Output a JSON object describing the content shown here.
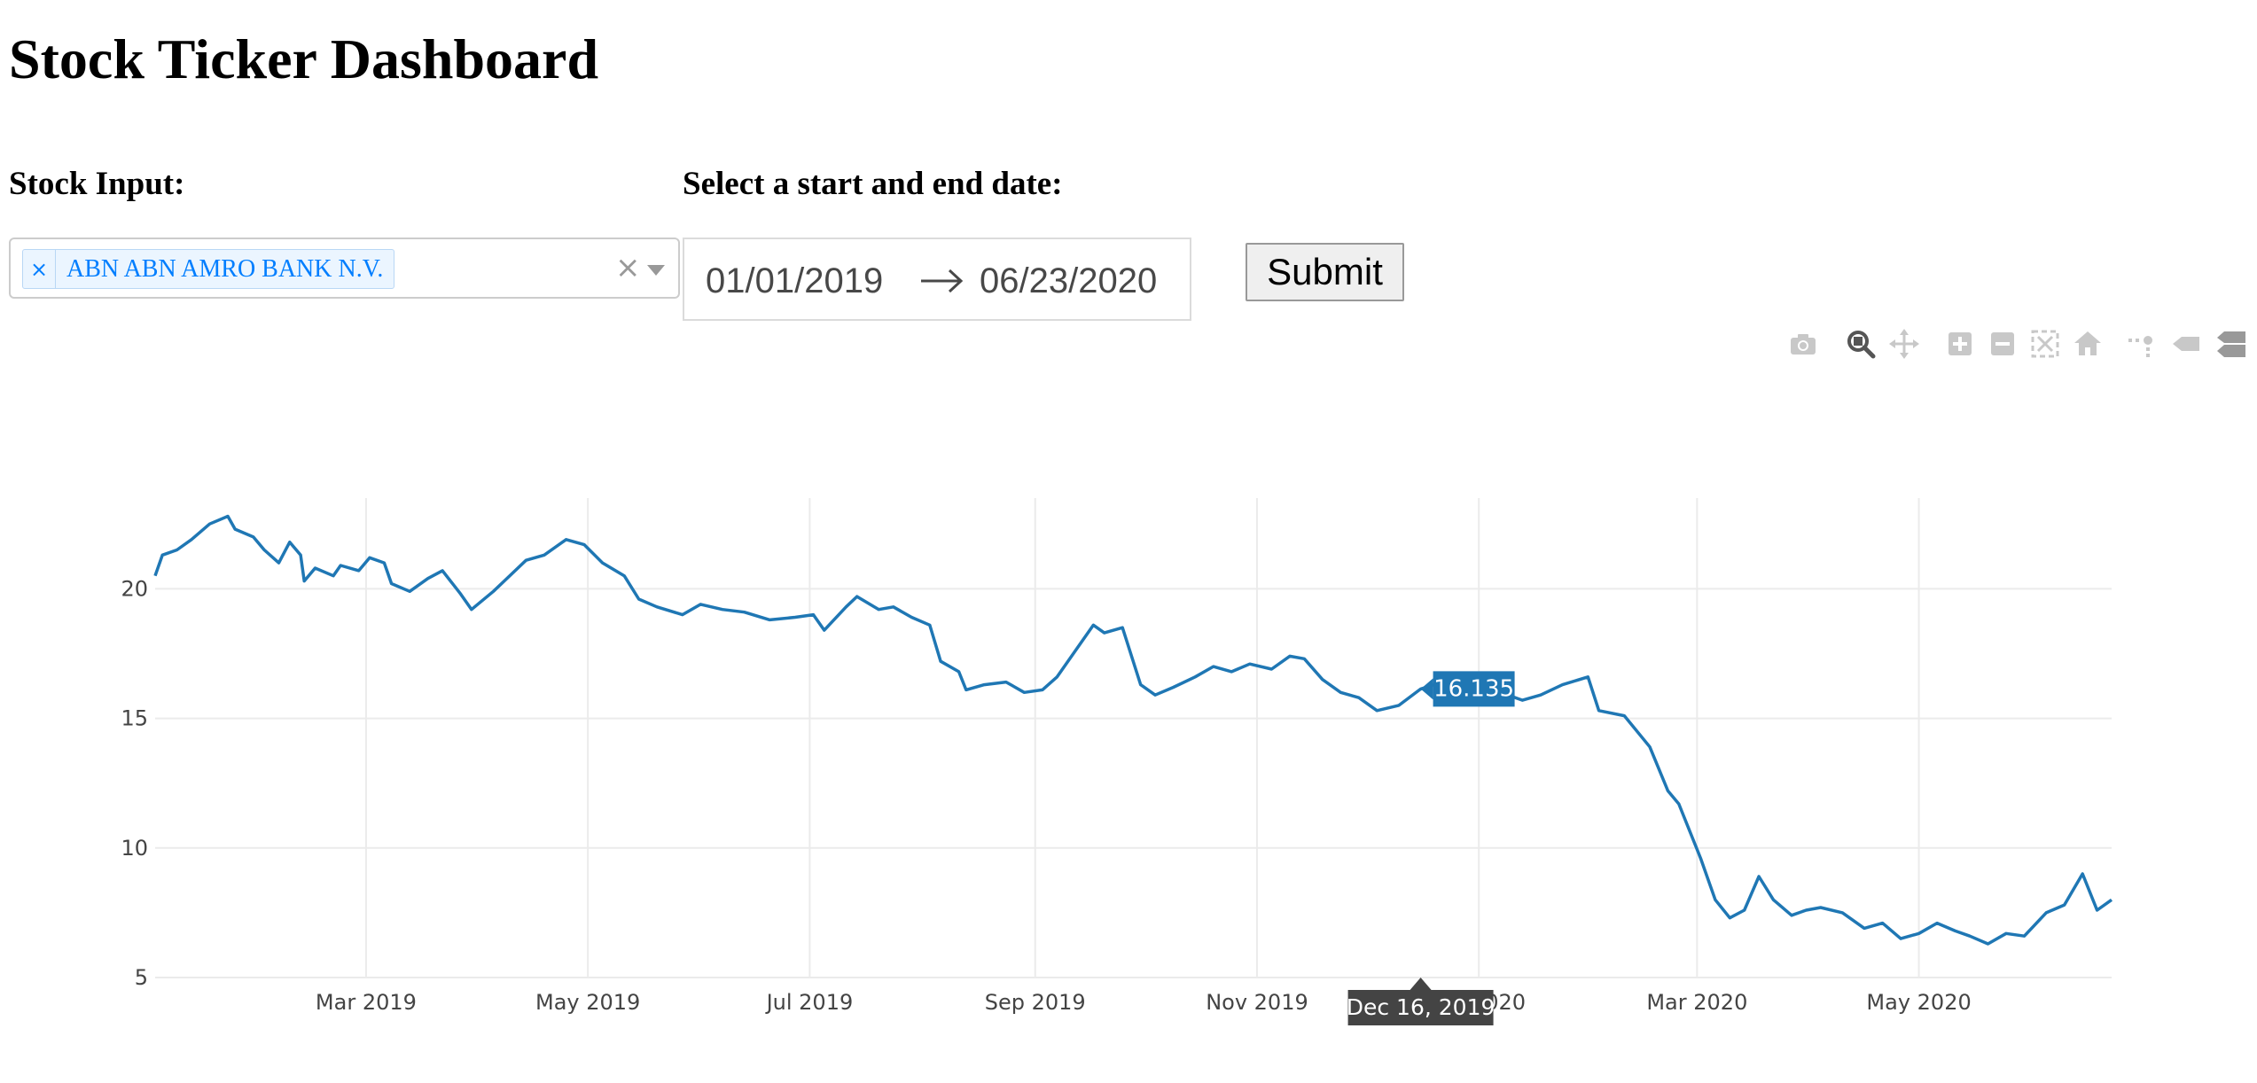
{
  "header": {
    "title": "Stock Ticker Dashboard"
  },
  "stock_input": {
    "label": "Stock Input:",
    "selected": [
      {
        "remove_glyph": "×",
        "label": "ABN ABN AMRO BANK N.V."
      }
    ],
    "clear_glyph": "×"
  },
  "date_range": {
    "label": "Select a start and end date:",
    "start": "01/01/2019",
    "end": "06/23/2020"
  },
  "submit": {
    "label": "Submit"
  },
  "modebar": {
    "icons": [
      "camera-icon",
      "zoom-icon",
      "pan-icon",
      "zoom-in-icon",
      "zoom-out-icon",
      "autoscale-icon",
      "reset-axes-icon",
      "spike-lines-icon",
      "hover-closest-icon",
      "hover-compare-icon"
    ],
    "active": "zoom-icon"
  },
  "chart_data": {
    "type": "line",
    "line_color": "#1f77b4",
    "grid": true,
    "xlim": [
      "2019-01-02",
      "2020-06-23"
    ],
    "ylim": [
      5,
      23.5
    ],
    "x_ticks": [
      {
        "date": "2019-03-01",
        "label": "Mar 2019"
      },
      {
        "date": "2019-05-01",
        "label": "May 2019"
      },
      {
        "date": "2019-07-01",
        "label": "Jul 2019"
      },
      {
        "date": "2019-09-01",
        "label": "Sep 2019"
      },
      {
        "date": "2019-11-01",
        "label": "Nov 2019"
      },
      {
        "date": "2020-01-01",
        "label": "Jan 2020"
      },
      {
        "date": "2020-03-01",
        "label": "Mar 2020"
      },
      {
        "date": "2020-05-01",
        "label": "May 2020"
      }
    ],
    "y_ticks": [
      5,
      10,
      15,
      20
    ],
    "hover": {
      "date": "2019-12-16",
      "label": "Dec 16, 2019",
      "value": "16.135"
    },
    "x": [
      "2019-01-02",
      "2019-01-04",
      "2019-01-08",
      "2019-01-12",
      "2019-01-17",
      "2019-01-22",
      "2019-01-24",
      "2019-01-29",
      "2019-02-01",
      "2019-02-05",
      "2019-02-08",
      "2019-02-11",
      "2019-02-12",
      "2019-02-15",
      "2019-02-20",
      "2019-02-22",
      "2019-02-27",
      "2019-03-02",
      "2019-03-06",
      "2019-03-08",
      "2019-03-13",
      "2019-03-18",
      "2019-03-22",
      "2019-03-27",
      "2019-03-30",
      "2019-04-05",
      "2019-04-08",
      "2019-04-14",
      "2019-04-19",
      "2019-04-25",
      "2019-04-30",
      "2019-05-05",
      "2019-05-11",
      "2019-05-15",
      "2019-05-20",
      "2019-05-27",
      "2019-06-01",
      "2019-06-07",
      "2019-06-13",
      "2019-06-20",
      "2019-06-27",
      "2019-07-02",
      "2019-07-05",
      "2019-07-11",
      "2019-07-14",
      "2019-07-20",
      "2019-07-24",
      "2019-07-29",
      "2019-08-03",
      "2019-08-06",
      "2019-08-11",
      "2019-08-13",
      "2019-08-18",
      "2019-08-24",
      "2019-08-29",
      "2019-09-03",
      "2019-09-07",
      "2019-09-12",
      "2019-09-17",
      "2019-09-20",
      "2019-09-25",
      "2019-09-30",
      "2019-10-04",
      "2019-10-09",
      "2019-10-15",
      "2019-10-20",
      "2019-10-25",
      "2019-10-30",
      "2019-11-05",
      "2019-11-10",
      "2019-11-14",
      "2019-11-19",
      "2019-11-24",
      "2019-11-29",
      "2019-12-04",
      "2019-12-10",
      "2019-12-16",
      "2019-12-22",
      "2019-12-27",
      "2020-01-02",
      "2020-01-07",
      "2020-01-13",
      "2020-01-18",
      "2020-01-24",
      "2020-01-31",
      "2020-02-03",
      "2020-02-10",
      "2020-02-17",
      "2020-02-22",
      "2020-02-25",
      "2020-03-02",
      "2020-03-06",
      "2020-03-10",
      "2020-03-14",
      "2020-03-18",
      "2020-03-22",
      "2020-03-27",
      "2020-03-31",
      "2020-04-04",
      "2020-04-10",
      "2020-04-16",
      "2020-04-21",
      "2020-04-26",
      "2020-05-01",
      "2020-05-06",
      "2020-05-11",
      "2020-05-15",
      "2020-05-20",
      "2020-05-25",
      "2020-05-30",
      "2020-06-05",
      "2020-06-10",
      "2020-06-15",
      "2020-06-19",
      "2020-06-23"
    ],
    "y": [
      20.5,
      21.3,
      21.5,
      21.9,
      22.5,
      22.8,
      22.3,
      22.0,
      21.5,
      21.0,
      21.8,
      21.3,
      20.3,
      20.8,
      20.5,
      20.9,
      20.7,
      21.2,
      21.0,
      20.2,
      19.9,
      20.4,
      20.7,
      19.8,
      19.2,
      19.9,
      20.3,
      21.1,
      21.3,
      21.9,
      21.7,
      21.0,
      20.5,
      19.6,
      19.3,
      19.0,
      19.4,
      19.2,
      19.1,
      18.8,
      18.9,
      19.0,
      18.4,
      19.3,
      19.7,
      19.2,
      19.3,
      18.9,
      18.6,
      17.2,
      16.8,
      16.1,
      16.3,
      16.4,
      16.0,
      16.1,
      16.6,
      17.6,
      18.6,
      18.3,
      18.5,
      16.3,
      15.9,
      16.2,
      16.6,
      17.0,
      16.8,
      17.1,
      16.9,
      17.4,
      17.3,
      16.5,
      16.0,
      15.8,
      15.3,
      15.5,
      16.135,
      16.4,
      16.5,
      16.3,
      16.0,
      15.7,
      15.9,
      16.3,
      16.6,
      15.3,
      15.1,
      13.9,
      12.2,
      11.7,
      9.6,
      8.0,
      7.3,
      7.6,
      8.9,
      8.0,
      7.4,
      7.6,
      7.7,
      7.5,
      6.9,
      7.1,
      6.5,
      6.7,
      7.1,
      6.8,
      6.6,
      6.3,
      6.7,
      6.6,
      7.5,
      7.8,
      9.0,
      7.6,
      8.0
    ]
  }
}
